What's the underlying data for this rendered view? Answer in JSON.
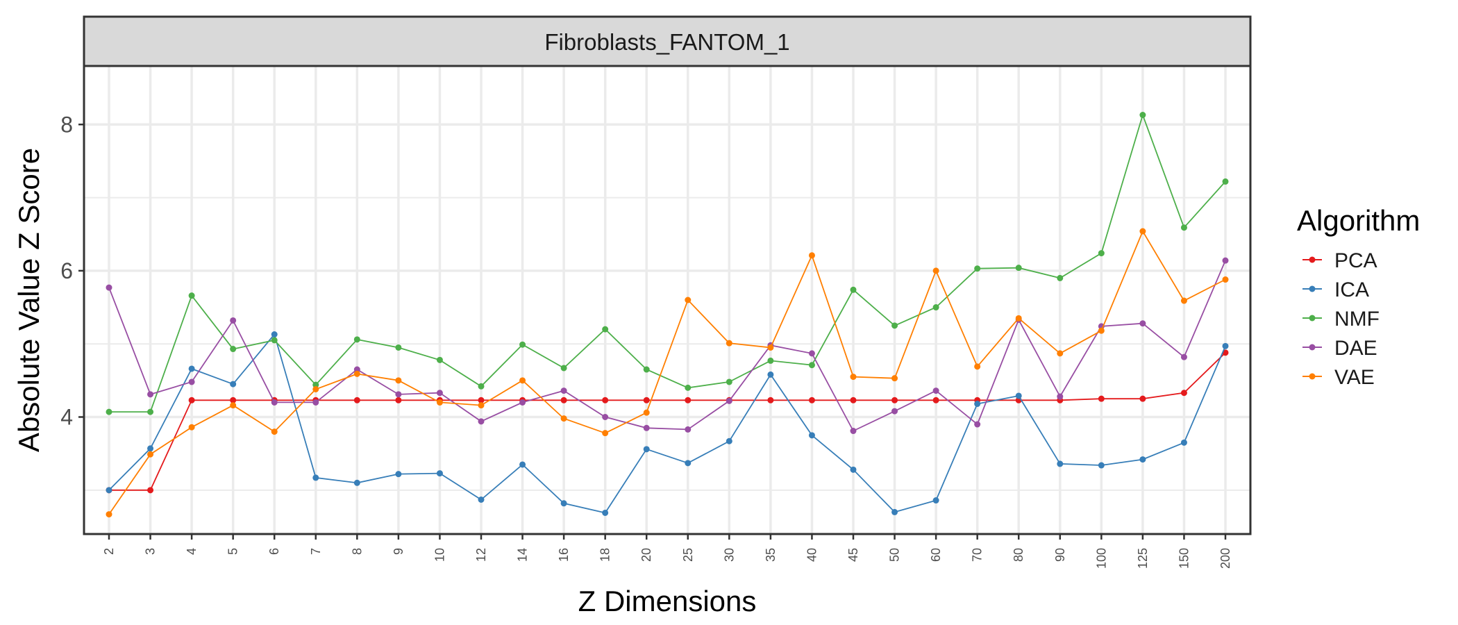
{
  "chart_data": {
    "type": "line",
    "title": "",
    "panel_title": "Fibroblasts_FANTOM_1",
    "xlabel": "Z Dimensions",
    "ylabel": "Absolute Value Z Score",
    "categories": [
      "2",
      "3",
      "4",
      "5",
      "6",
      "7",
      "8",
      "9",
      "10",
      "12",
      "14",
      "16",
      "18",
      "20",
      "25",
      "30",
      "35",
      "40",
      "45",
      "50",
      "60",
      "70",
      "80",
      "90",
      "100",
      "125",
      "150",
      "200"
    ],
    "ylim": [
      2.4,
      8.8
    ],
    "yticks": [
      4,
      6,
      8
    ],
    "grid": true,
    "legend_title": "Algorithm",
    "legend_position": "right",
    "series": [
      {
        "name": "PCA",
        "color": "#e41a1c",
        "values": [
          3.0,
          3.0,
          4.23,
          4.23,
          4.23,
          4.23,
          4.23,
          4.23,
          4.23,
          4.23,
          4.23,
          4.23,
          4.23,
          4.23,
          4.23,
          4.23,
          4.23,
          4.23,
          4.23,
          4.23,
          4.23,
          4.23,
          4.23,
          4.23,
          4.25,
          4.25,
          4.33,
          4.88
        ]
      },
      {
        "name": "ICA",
        "color": "#377eb8",
        "values": [
          3.0,
          3.57,
          4.66,
          4.45,
          5.13,
          3.17,
          3.1,
          3.22,
          3.23,
          2.87,
          3.35,
          2.82,
          2.69,
          3.56,
          3.37,
          3.67,
          4.58,
          3.75,
          3.28,
          2.7,
          2.86,
          4.18,
          4.29,
          3.36,
          3.34,
          3.42,
          3.65,
          4.97
        ]
      },
      {
        "name": "NMF",
        "color": "#4daf4a",
        "values": [
          4.07,
          4.07,
          5.66,
          4.93,
          5.05,
          4.44,
          5.06,
          4.95,
          4.78,
          4.42,
          4.99,
          4.67,
          5.2,
          4.65,
          4.4,
          4.48,
          4.77,
          4.71,
          5.74,
          5.25,
          5.5,
          6.03,
          6.04,
          5.9,
          6.24,
          8.13,
          6.59,
          7.22
        ]
      },
      {
        "name": "DAE",
        "color": "#984ea3",
        "values": [
          5.77,
          4.31,
          4.48,
          5.32,
          4.2,
          4.2,
          4.65,
          4.31,
          4.33,
          3.94,
          4.2,
          4.36,
          4.0,
          3.85,
          3.83,
          4.22,
          4.98,
          4.87,
          3.81,
          4.08,
          4.36,
          3.9,
          5.33,
          4.28,
          5.24,
          5.28,
          4.82,
          6.14
        ]
      },
      {
        "name": "VAE",
        "color": "#ff7f00",
        "values": [
          2.67,
          3.49,
          3.86,
          4.16,
          3.8,
          4.38,
          4.59,
          4.5,
          4.2,
          4.16,
          4.5,
          3.98,
          3.78,
          4.06,
          5.6,
          5.01,
          4.95,
          6.21,
          4.55,
          4.53,
          6.0,
          4.69,
          5.35,
          4.87,
          5.18,
          6.54,
          5.59,
          5.88
        ]
      }
    ]
  }
}
